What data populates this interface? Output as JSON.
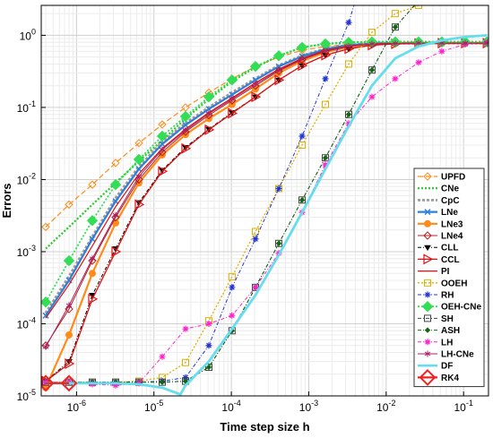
{
  "chart_data": {
    "type": "line",
    "title": "",
    "xlabel": "Time step size h",
    "ylabel": "Errors",
    "xscale": "log",
    "yscale": "log",
    "xlim": [
      3.5e-07,
      0.21
    ],
    "ylim": [
      1e-05,
      2.6
    ],
    "grid": true,
    "legend_position": "bottom-right",
    "x_ticks": [
      {
        "value": 1e-06,
        "base": "10",
        "exp": "-6"
      },
      {
        "value": 1e-05,
        "base": "10",
        "exp": "-5"
      },
      {
        "value": 0.0001,
        "base": "10",
        "exp": "-4"
      },
      {
        "value": 0.001,
        "base": "10",
        "exp": "-3"
      },
      {
        "value": 0.01,
        "base": "10",
        "exp": "-2"
      },
      {
        "value": 0.1,
        "base": "10",
        "exp": "-1"
      }
    ],
    "y_ticks": [
      {
        "value": 1e-05,
        "base": "10",
        "exp": "-5"
      },
      {
        "value": 0.0001,
        "base": "10",
        "exp": "-4"
      },
      {
        "value": 0.001,
        "base": "10",
        "exp": "-3"
      },
      {
        "value": 0.01,
        "base": "10",
        "exp": "-2"
      },
      {
        "value": 0.1,
        "base": "10",
        "exp": "-1"
      },
      {
        "value": 1,
        "base": "10",
        "exp": "0"
      }
    ],
    "series": [
      {
        "name": "UPFD",
        "color": "#ff8c1a",
        "dash": "6,3",
        "width": 1.2,
        "marker": "diamond-open",
        "x": [
          4e-07,
          8e-07,
          1.6e-06,
          3.2e-06,
          6.4e-06,
          1.28e-05,
          2.56e-05,
          5.12e-05,
          0.000102,
          0.000205,
          0.00041,
          0.00082,
          0.00164,
          0.00328,
          0.00655,
          0.0131,
          0.0262,
          0.0524,
          0.105,
          0.2
        ],
        "y": [
          0.0022,
          0.0045,
          0.0085,
          0.017,
          0.032,
          0.058,
          0.1,
          0.16,
          0.25,
          0.37,
          0.5,
          0.62,
          0.7,
          0.75,
          0.78,
          0.79,
          0.79,
          0.79,
          0.79,
          0.79
        ]
      },
      {
        "name": "CNe",
        "color": "#22cc22",
        "dash": "2,2",
        "width": 2.2,
        "marker": "none",
        "x": [
          4e-07,
          8e-07,
          1.6e-06,
          3.2e-06,
          6.4e-06,
          1.28e-05,
          2.56e-05,
          5.12e-05,
          0.000102,
          0.000205,
          0.00041,
          0.00082,
          0.00164,
          0.00328,
          0.00655,
          0.0131,
          0.0262,
          0.0524,
          0.105,
          0.2
        ],
        "y": [
          0.0011,
          0.0022,
          0.0045,
          0.009,
          0.018,
          0.035,
          0.07,
          0.13,
          0.23,
          0.36,
          0.52,
          0.68,
          0.76,
          0.8,
          0.81,
          0.81,
          0.81,
          0.81,
          0.81,
          0.81
        ]
      },
      {
        "name": "CpC",
        "color": "#999999",
        "dash": "3,2",
        "width": 3.2,
        "marker": "none",
        "x": [
          4e-07,
          8e-07,
          1.6e-06,
          3.2e-06,
          6.4e-06,
          1.28e-05,
          2.56e-05,
          5.12e-05,
          0.000102,
          0.000205,
          0.00041,
          0.00082,
          0.00164,
          0.00328,
          0.00655,
          0.0131,
          0.0262,
          0.0524,
          0.105,
          0.2
        ],
        "y": [
          0.00014,
          0.00045,
          0.0016,
          0.0055,
          0.015,
          0.033,
          0.06,
          0.1,
          0.16,
          0.25,
          0.38,
          0.52,
          0.65,
          0.73,
          0.77,
          0.78,
          0.78,
          0.78,
          0.78,
          0.78
        ]
      },
      {
        "name": "LNe",
        "color": "#2f7fd8",
        "dash": "",
        "width": 2.2,
        "marker": "x",
        "x": [
          4e-07,
          8e-07,
          1.6e-06,
          3.2e-06,
          6.4e-06,
          1.28e-05,
          2.56e-05,
          5.12e-05,
          0.000102,
          0.000205,
          0.00041,
          0.00082,
          0.00164,
          0.00328,
          0.00655,
          0.0131,
          0.0262,
          0.0524,
          0.105,
          0.2
        ],
        "y": [
          0.00013,
          0.0004,
          0.0015,
          0.005,
          0.014,
          0.031,
          0.057,
          0.095,
          0.15,
          0.24,
          0.37,
          0.51,
          0.64,
          0.73,
          0.77,
          0.78,
          0.78,
          0.78,
          0.78,
          0.78
        ]
      },
      {
        "name": "LNe3",
        "color": "#ff8c1a",
        "dash": "",
        "width": 2.2,
        "marker": "circle-filled",
        "x": [
          4e-07,
          8e-07,
          1.6e-06,
          3.2e-06,
          6.4e-06,
          1.28e-05,
          2.56e-05,
          5.12e-05,
          0.000102,
          0.000205,
          0.00041,
          0.00082,
          0.00164,
          0.00328,
          0.00655,
          0.0131,
          0.0262,
          0.0524,
          0.105,
          0.2
        ],
        "y": [
          1.3e-05,
          7e-05,
          0.0005,
          0.0025,
          0.009,
          0.022,
          0.042,
          0.07,
          0.11,
          0.18,
          0.3,
          0.44,
          0.58,
          0.69,
          0.75,
          0.77,
          0.78,
          0.78,
          0.78,
          0.78
        ]
      },
      {
        "name": "LNe4",
        "color": "#b02020",
        "dash": "",
        "width": 1,
        "marker": "diamond-open",
        "x": [
          4e-07,
          8e-07,
          1.6e-06,
          3.2e-06,
          6.4e-06,
          1.28e-05,
          2.56e-05,
          5.12e-05,
          0.000102,
          0.000205,
          0.00041,
          0.00082,
          0.00164,
          0.00328,
          0.00655,
          0.0131,
          0.0262,
          0.0524,
          0.105,
          0.2
        ],
        "y": [
          5e-05,
          0.00016,
          0.00075,
          0.003,
          0.01,
          0.024,
          0.046,
          0.078,
          0.125,
          0.2,
          0.32,
          0.46,
          0.6,
          0.7,
          0.76,
          0.77,
          0.78,
          0.78,
          0.78,
          0.78
        ]
      },
      {
        "name": "CLL",
        "color": "#000000",
        "dash": "4,2,1,2",
        "width": 1,
        "marker": "tri-down",
        "x": [
          4e-07,
          8e-07,
          1.6e-06,
          3.2e-06,
          6.4e-06,
          1.28e-05,
          2.56e-05,
          5.12e-05,
          0.000102,
          0.000205,
          0.00041,
          0.00082,
          0.00164,
          0.00328,
          0.00655,
          0.0131,
          0.0262,
          0.0524,
          0.105,
          0.2
        ],
        "y": [
          1.6e-05,
          3e-05,
          0.00025,
          0.0011,
          0.0048,
          0.0135,
          0.028,
          0.05,
          0.085,
          0.14,
          0.24,
          0.38,
          0.53,
          0.65,
          0.73,
          0.76,
          0.77,
          0.78,
          0.78,
          0.78
        ]
      },
      {
        "name": "CCL",
        "color": "#dd1111",
        "dash": "",
        "width": 1.3,
        "marker": "tri-right",
        "x": [
          4e-07,
          8e-07,
          1.6e-06,
          3.2e-06,
          6.4e-06,
          1.28e-05,
          2.56e-05,
          5.12e-05,
          0.000102,
          0.000205,
          0.00041,
          0.00082,
          0.00164,
          0.00328,
          0.00655,
          0.0131,
          0.0262,
          0.0524,
          0.105,
          0.2
        ],
        "y": [
          1.6e-05,
          2.8e-05,
          0.00022,
          0.001,
          0.0045,
          0.013,
          0.027,
          0.049,
          0.083,
          0.14,
          0.24,
          0.38,
          0.53,
          0.65,
          0.73,
          0.76,
          0.77,
          0.78,
          0.78,
          0.78
        ]
      },
      {
        "name": "PI",
        "color": "#dd1111",
        "dash": "",
        "width": 1.2,
        "marker": "none",
        "x": [
          4e-07,
          8e-07,
          1.6e-06,
          3.2e-06,
          6.4e-06,
          1.28e-05,
          2.56e-05,
          5.12e-05,
          0.000102,
          0.000205,
          0.00041,
          0.00082,
          0.00164,
          0.00328,
          0.00655,
          0.0131,
          0.0262,
          0.0524,
          0.105,
          0.2
        ],
        "y": [
          0.00012,
          0.00035,
          0.0012,
          0.0042,
          0.012,
          0.027,
          0.05,
          0.085,
          0.135,
          0.22,
          0.34,
          0.48,
          0.62,
          0.71,
          0.76,
          0.77,
          0.78,
          0.78,
          0.78,
          0.78
        ]
      },
      {
        "name": "OOEH",
        "color": "#e0b000",
        "dash": "2,2",
        "width": 1.3,
        "marker": "square-open",
        "x": [
          4e-07,
          8e-07,
          1.6e-06,
          3.2e-06,
          6.4e-06,
          1.28e-05,
          2.56e-05,
          5.12e-05,
          0.000102,
          0.000205,
          0.00041,
          0.00082,
          0.00164,
          0.00328,
          0.00655,
          0.0131,
          0.0262,
          0.0524
        ],
        "y": [
          1.55e-05,
          1.55e-05,
          1.55e-05,
          1.55e-05,
          1.6e-05,
          1.8e-05,
          2.9e-05,
          0.00011,
          0.00045,
          0.0019,
          0.0075,
          0.03,
          0.11,
          0.4,
          1.1,
          2.0,
          2.6,
          3.0
        ]
      },
      {
        "name": "RH",
        "color": "#2233cc",
        "dash": "4,2,1,2",
        "width": 1,
        "marker": "star",
        "x": [
          4e-07,
          8e-07,
          1.6e-06,
          3.2e-06,
          6.4e-06,
          1.28e-05,
          2.56e-05,
          5.12e-05,
          0.000102,
          0.000205,
          0.00041,
          0.00082,
          0.00164,
          0.00328,
          0.004
        ],
        "y": [
          1.55e-05,
          1.55e-05,
          1.55e-05,
          1.55e-05,
          1.55e-05,
          1.6e-05,
          1.8e-05,
          5e-05,
          0.00032,
          0.0015,
          0.0075,
          0.04,
          0.25,
          1.5,
          3.0
        ]
      },
      {
        "name": "OEH-CNe",
        "color": "#33dd55",
        "dash": "2,2",
        "width": 1.8,
        "marker": "diamond-filled",
        "x": [
          4e-07,
          8e-07,
          1.6e-06,
          3.2e-06,
          6.4e-06,
          1.28e-05,
          2.56e-05,
          5.12e-05,
          0.000102,
          0.000205,
          0.00041,
          0.00082,
          0.00164,
          0.00328,
          0.00655,
          0.0131,
          0.0262,
          0.0524,
          0.105,
          0.2
        ],
        "y": [
          0.0002,
          0.00075,
          0.0027,
          0.0085,
          0.019,
          0.04,
          0.075,
          0.14,
          0.24,
          0.37,
          0.52,
          0.68,
          0.76,
          0.8,
          0.81,
          0.81,
          0.81,
          0.81,
          0.81,
          0.81
        ]
      },
      {
        "name": "SH",
        "color": "#444444",
        "dash": "4,2,1,2",
        "width": 1,
        "marker": "square-open",
        "x": [
          4e-07,
          8e-07,
          1.6e-06,
          3.2e-06,
          6.4e-06,
          1.28e-05,
          2.56e-05,
          5.12e-05,
          0.000102,
          0.000205,
          0.00041,
          0.00082,
          0.00164,
          0.00328,
          0.00655,
          0.0131,
          0.0262
        ],
        "y": [
          1.55e-05,
          1.55e-05,
          1.55e-05,
          1.55e-05,
          1.55e-05,
          1.55e-05,
          1.6e-05,
          2.5e-05,
          8e-05,
          0.00032,
          0.0013,
          0.0052,
          0.02,
          0.08,
          0.33,
          1.3,
          3.0
        ]
      },
      {
        "name": "ASH",
        "color": "#116611",
        "dash": "4,2,1,2",
        "width": 1,
        "marker": "diamond-small",
        "x": [
          4e-07,
          8e-07,
          1.6e-06,
          3.2e-06,
          6.4e-06,
          1.28e-05,
          2.56e-05,
          5.12e-05,
          0.000102,
          0.000205,
          0.00041,
          0.00082,
          0.00164,
          0.00328,
          0.00655,
          0.0131,
          0.0262
        ],
        "y": [
          1.55e-05,
          1.55e-05,
          1.55e-05,
          1.55e-05,
          1.55e-05,
          1.55e-05,
          1.6e-05,
          2.5e-05,
          8e-05,
          0.00032,
          0.0013,
          0.0052,
          0.02,
          0.08,
          0.33,
          1.3,
          3.0
        ]
      },
      {
        "name": "LH",
        "color": "#ff22cc",
        "dash": "4,2,1,2",
        "width": 1,
        "marker": "star",
        "x": [
          4e-07,
          8e-07,
          1.6e-06,
          3.2e-06,
          6.4e-06,
          1.28e-05,
          2.56e-05,
          5.12e-05,
          0.000102,
          0.000205,
          0.00041,
          0.00082,
          0.00164,
          0.00328,
          0.00655,
          0.0131,
          0.0262,
          0.0524,
          0.105,
          0.2
        ],
        "y": [
          1.55e-05,
          1.55e-05,
          1.45e-05,
          1.4e-05,
          1.5e-05,
          3.5e-05,
          8.5e-05,
          0.0001,
          0.00013,
          0.00032,
          0.00095,
          0.0035,
          0.016,
          0.06,
          0.14,
          0.25,
          0.42,
          0.6,
          0.75,
          0.8
        ]
      },
      {
        "name": "LH-CNe",
        "color": "#aa2266",
        "dash": "",
        "width": 1,
        "marker": "asterisk",
        "x": [
          4e-07,
          8e-07,
          1.6e-06,
          3.2e-06,
          6.4e-06,
          1.28e-05,
          2.56e-05,
          5.12e-05,
          0.000102,
          0.000205,
          0.00041,
          0.00082,
          0.00164,
          0.00328,
          0.00655,
          0.0131,
          0.0262,
          0.0524,
          0.105,
          0.2
        ],
        "y": [
          4.8e-05,
          0.00018,
          0.0008,
          0.0032,
          0.011,
          0.026,
          0.048,
          0.082,
          0.13,
          0.21,
          0.33,
          0.47,
          0.61,
          0.71,
          0.76,
          0.77,
          0.78,
          0.78,
          0.78,
          0.78
        ]
      },
      {
        "name": "DF",
        "color": "#66ddee",
        "dash": "",
        "width": 2.8,
        "marker": "none",
        "x": [
          4e-07,
          8e-07,
          1.6e-06,
          3.2e-06,
          6.4e-06,
          1.28e-05,
          2.2e-05,
          2.56e-05,
          5.12e-05,
          0.000102,
          0.000205,
          0.00041,
          0.00082,
          0.00164,
          0.00328,
          0.00655,
          0.0131,
          0.0262,
          0.0524,
          0.105,
          0.2
        ],
        "y": [
          1.5e-05,
          1.5e-05,
          1.5e-05,
          1.5e-05,
          1.45e-05,
          1.3e-05,
          1.05e-05,
          1.4e-05,
          3e-05,
          8.5e-05,
          0.00025,
          0.0009,
          0.0035,
          0.014,
          0.055,
          0.2,
          0.48,
          0.7,
          0.85,
          0.95,
          1.0
        ]
      },
      {
        "name": "RK4",
        "color": "#ee2222",
        "dash": "",
        "width": 2.2,
        "marker": "diamond-big",
        "x": [
          4e-07,
          8e-07
        ],
        "y": [
          1.5e-05,
          1.5e-05
        ]
      }
    ]
  }
}
